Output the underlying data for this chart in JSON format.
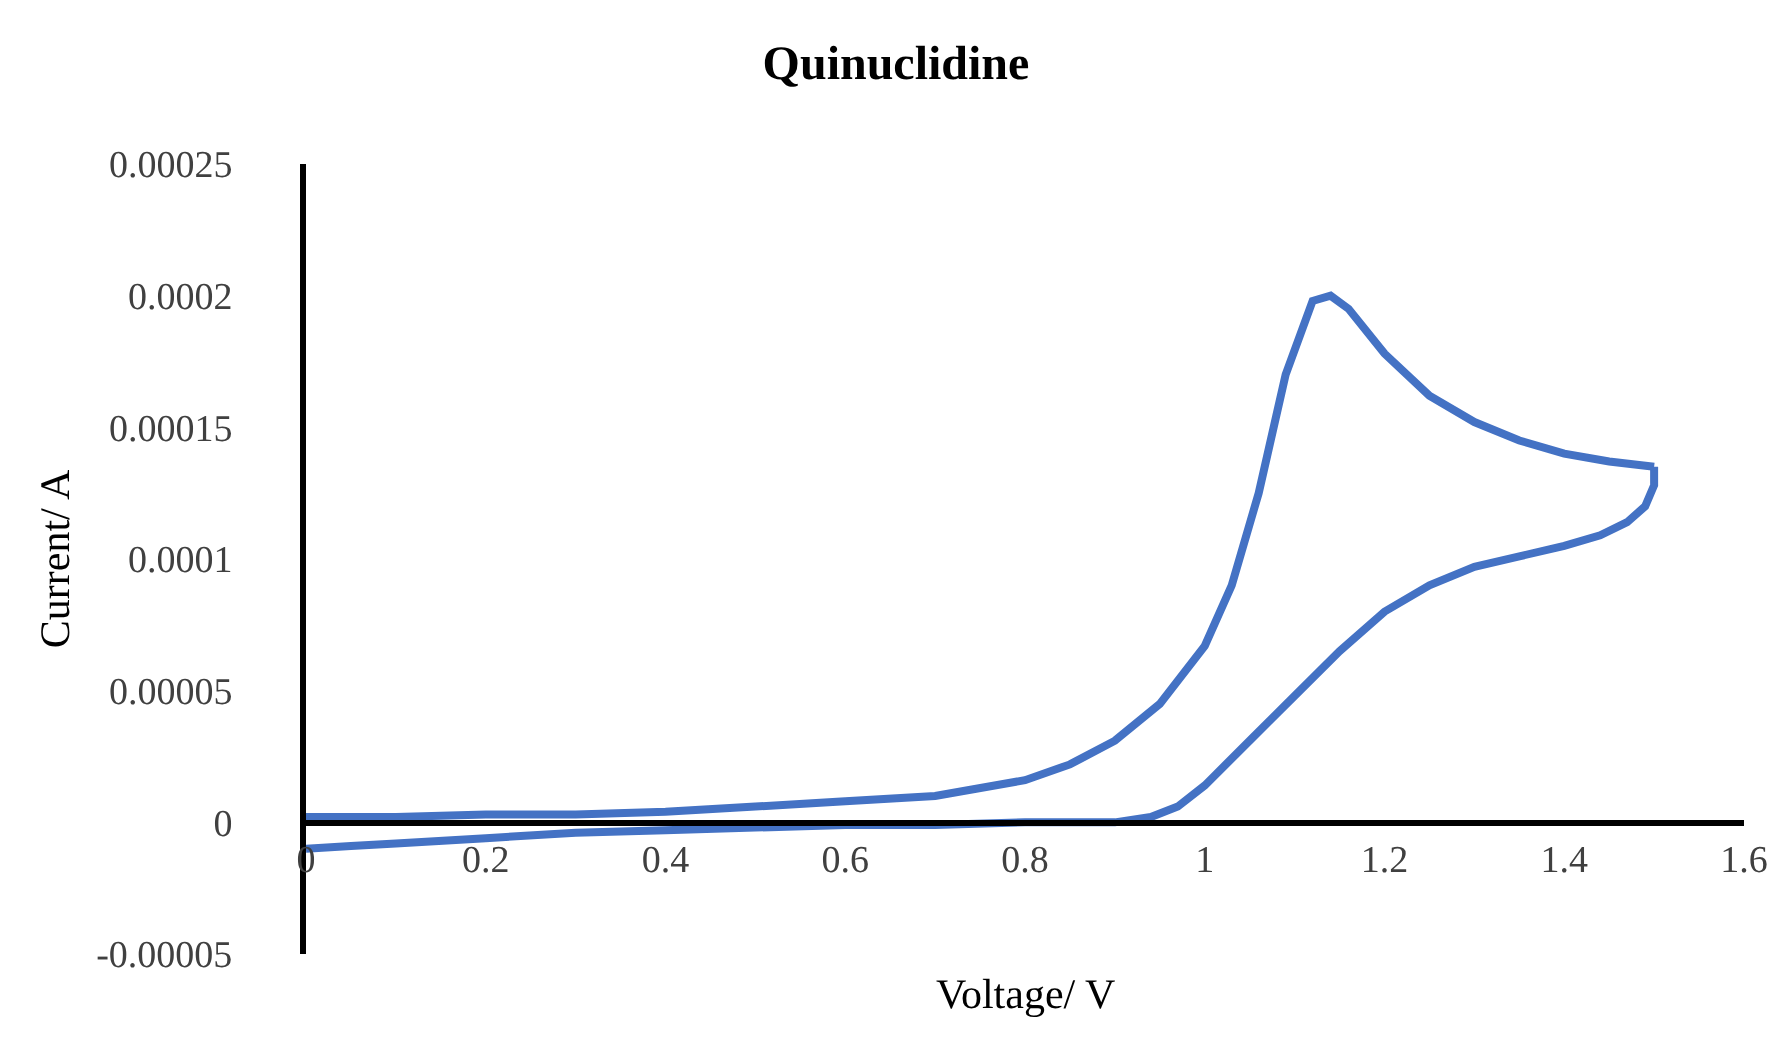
{
  "chart_data": {
    "type": "line",
    "title": "Quinuclidine",
    "xlabel": "Voltage/ V",
    "ylabel": "Current/ A",
    "series": [
      {
        "color": "#4472c4",
        "x": [
          0,
          0.1,
          0.2,
          0.3,
          0.4,
          0.5,
          0.6,
          0.7,
          0.8,
          0.85,
          0.9,
          0.95,
          1.0,
          1.03,
          1.06,
          1.09,
          1.12,
          1.14,
          1.16,
          1.2,
          1.25,
          1.3,
          1.35,
          1.4,
          1.45,
          1.5
        ],
        "values": [
          2e-06,
          2e-06,
          3e-06,
          3e-06,
          4e-06,
          6e-06,
          8e-06,
          1e-05,
          1.6e-05,
          2.2e-05,
          3.1e-05,
          4.5e-05,
          6.7e-05,
          9e-05,
          0.000125,
          0.00017,
          0.000198,
          0.0002,
          0.000195,
          0.000178,
          0.000162,
          0.000152,
          0.000145,
          0.00014,
          0.000137,
          0.000135
        ]
      },
      {
        "color": "#4472c4",
        "x": [
          1.5,
          1.5,
          1.49,
          1.47,
          1.44,
          1.4,
          1.35,
          1.3,
          1.25,
          1.2,
          1.15,
          1.1,
          1.05,
          1.0,
          0.97,
          0.94,
          0.9,
          0.8,
          0.7,
          0.6,
          0.5,
          0.4,
          0.3,
          0.2,
          0.1,
          0.05,
          0
        ],
        "values": [
          0.000135,
          0.000128,
          0.00012,
          0.000114,
          0.000109,
          0.000105,
          0.000101,
          9.7e-05,
          9e-05,
          8e-05,
          6.5e-05,
          4.8e-05,
          3.1e-05,
          1.4e-05,
          6e-06,
          2e-06,
          0,
          0,
          -1e-06,
          -1e-06,
          -2e-06,
          -3e-06,
          -4e-06,
          -6e-06,
          -8e-06,
          -9e-06,
          -1e-05
        ]
      }
    ],
    "xlim": [
      0,
      1.6
    ],
    "xticks": [
      0,
      0.2,
      0.4,
      0.6,
      0.8,
      1,
      1.2,
      1.4,
      1.6
    ],
    "ylim": [
      -5e-05,
      0.00025
    ],
    "yticks": [
      {
        "value": -5e-05,
        "label": "-0.00005"
      },
      0,
      {
        "value": 5e-05,
        "label": "0.00005"
      },
      0.0001,
      0.00015,
      0.0002,
      0.00025
    ],
    "marker": "none",
    "line_style": "solid"
  }
}
